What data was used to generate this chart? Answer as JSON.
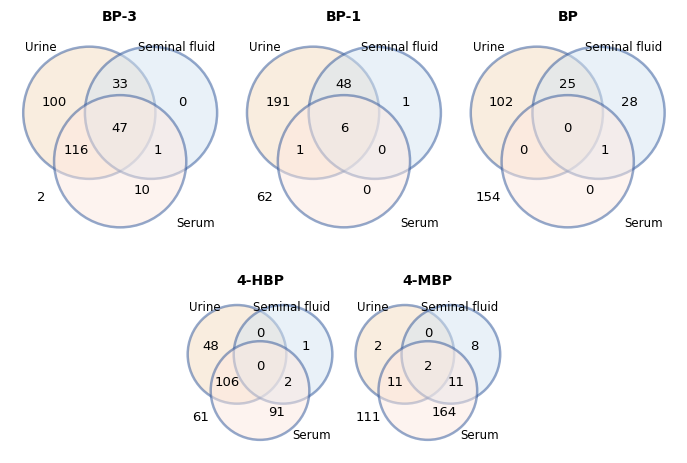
{
  "panels": [
    {
      "title": "BP-3",
      "numbers": {
        "urine_only": "100",
        "seminal_only": "0",
        "serum_only": "2",
        "urine_seminal": "33",
        "urine_serum": "116",
        "seminal_serum": "10",
        "all_three": "47",
        "seminal_serum_excl": "1"
      }
    },
    {
      "title": "BP-1",
      "numbers": {
        "urine_only": "191",
        "seminal_only": "1",
        "serum_only": "62",
        "urine_seminal": "48",
        "urine_serum": "1",
        "seminal_serum": "0",
        "all_three": "6",
        "seminal_serum_excl": "0"
      }
    },
    {
      "title": "BP",
      "numbers": {
        "urine_only": "102",
        "seminal_only": "28",
        "serum_only": "154",
        "urine_seminal": "25",
        "urine_serum": "0",
        "seminal_serum": "0",
        "all_three": "0",
        "seminal_serum_excl": "1"
      }
    },
    {
      "title": "4-HBP",
      "numbers": {
        "urine_only": "48",
        "seminal_only": "1",
        "serum_only": "61",
        "urine_seminal": "0",
        "urine_serum": "106",
        "seminal_serum": "91",
        "all_three": "0",
        "seminal_serum_excl": "2"
      }
    },
    {
      "title": "4-MBP",
      "numbers": {
        "urine_only": "2",
        "seminal_only": "8",
        "serum_only": "111",
        "urine_seminal": "0",
        "urine_serum": "11",
        "seminal_serum": "164",
        "all_three": "2",
        "seminal_serum_excl": "11"
      }
    }
  ],
  "urine_color": "#f5ddc0",
  "seminal_color": "#d5e5f2",
  "serum_color": "#fde8e0",
  "circle_edge_color": "#2a5298",
  "circle_lw": 1.8,
  "circle_alpha": 0.5,
  "title_fontsize": 10,
  "label_fontsize": 8.5,
  "number_fontsize": 9.5,
  "box_edge_color": "#4472c4",
  "background_color": "#ffffff"
}
